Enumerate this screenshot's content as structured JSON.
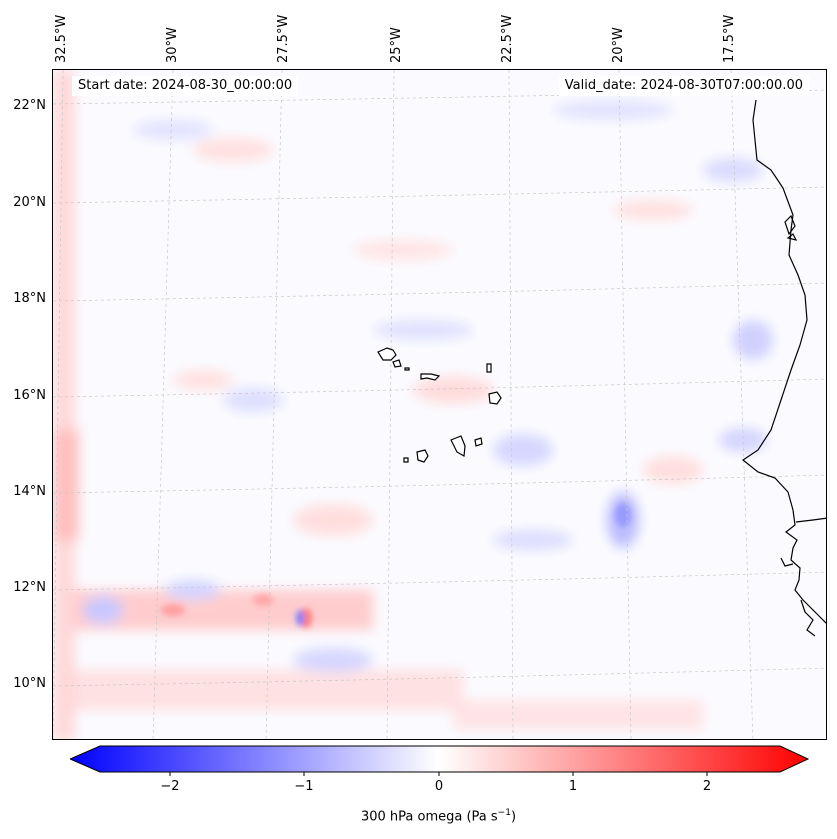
{
  "map": {
    "start_date": "Start date: 2024-08-30_00:00:00",
    "valid_date": "Valid_date: 2024-08-30T07:00:00.00",
    "lat_labels": [
      "22°N",
      "20°N",
      "18°N",
      "16°N",
      "14°N",
      "12°N",
      "10°N"
    ],
    "lon_labels": [
      "32.5°W",
      "30°W",
      "27.5°W",
      "25°W",
      "22.5°W",
      "20°W",
      "17.5°W"
    ]
  },
  "colorbar": {
    "label_prefix": "300 hPa omega (Pa s",
    "label_exp": "−1",
    "label_suffix": ")",
    "ticks": [
      "−2",
      "−1",
      "0",
      "1",
      "2"
    ],
    "range": [
      -2.75,
      2.75
    ],
    "colors": {
      "min": "#0000ff",
      "mid": "#ffffff",
      "max": "#ff0000"
    }
  },
  "colors": {
    "coastline": "#000000",
    "gridline": "#c8c8c8",
    "background_tint": "#fbfbff"
  }
}
